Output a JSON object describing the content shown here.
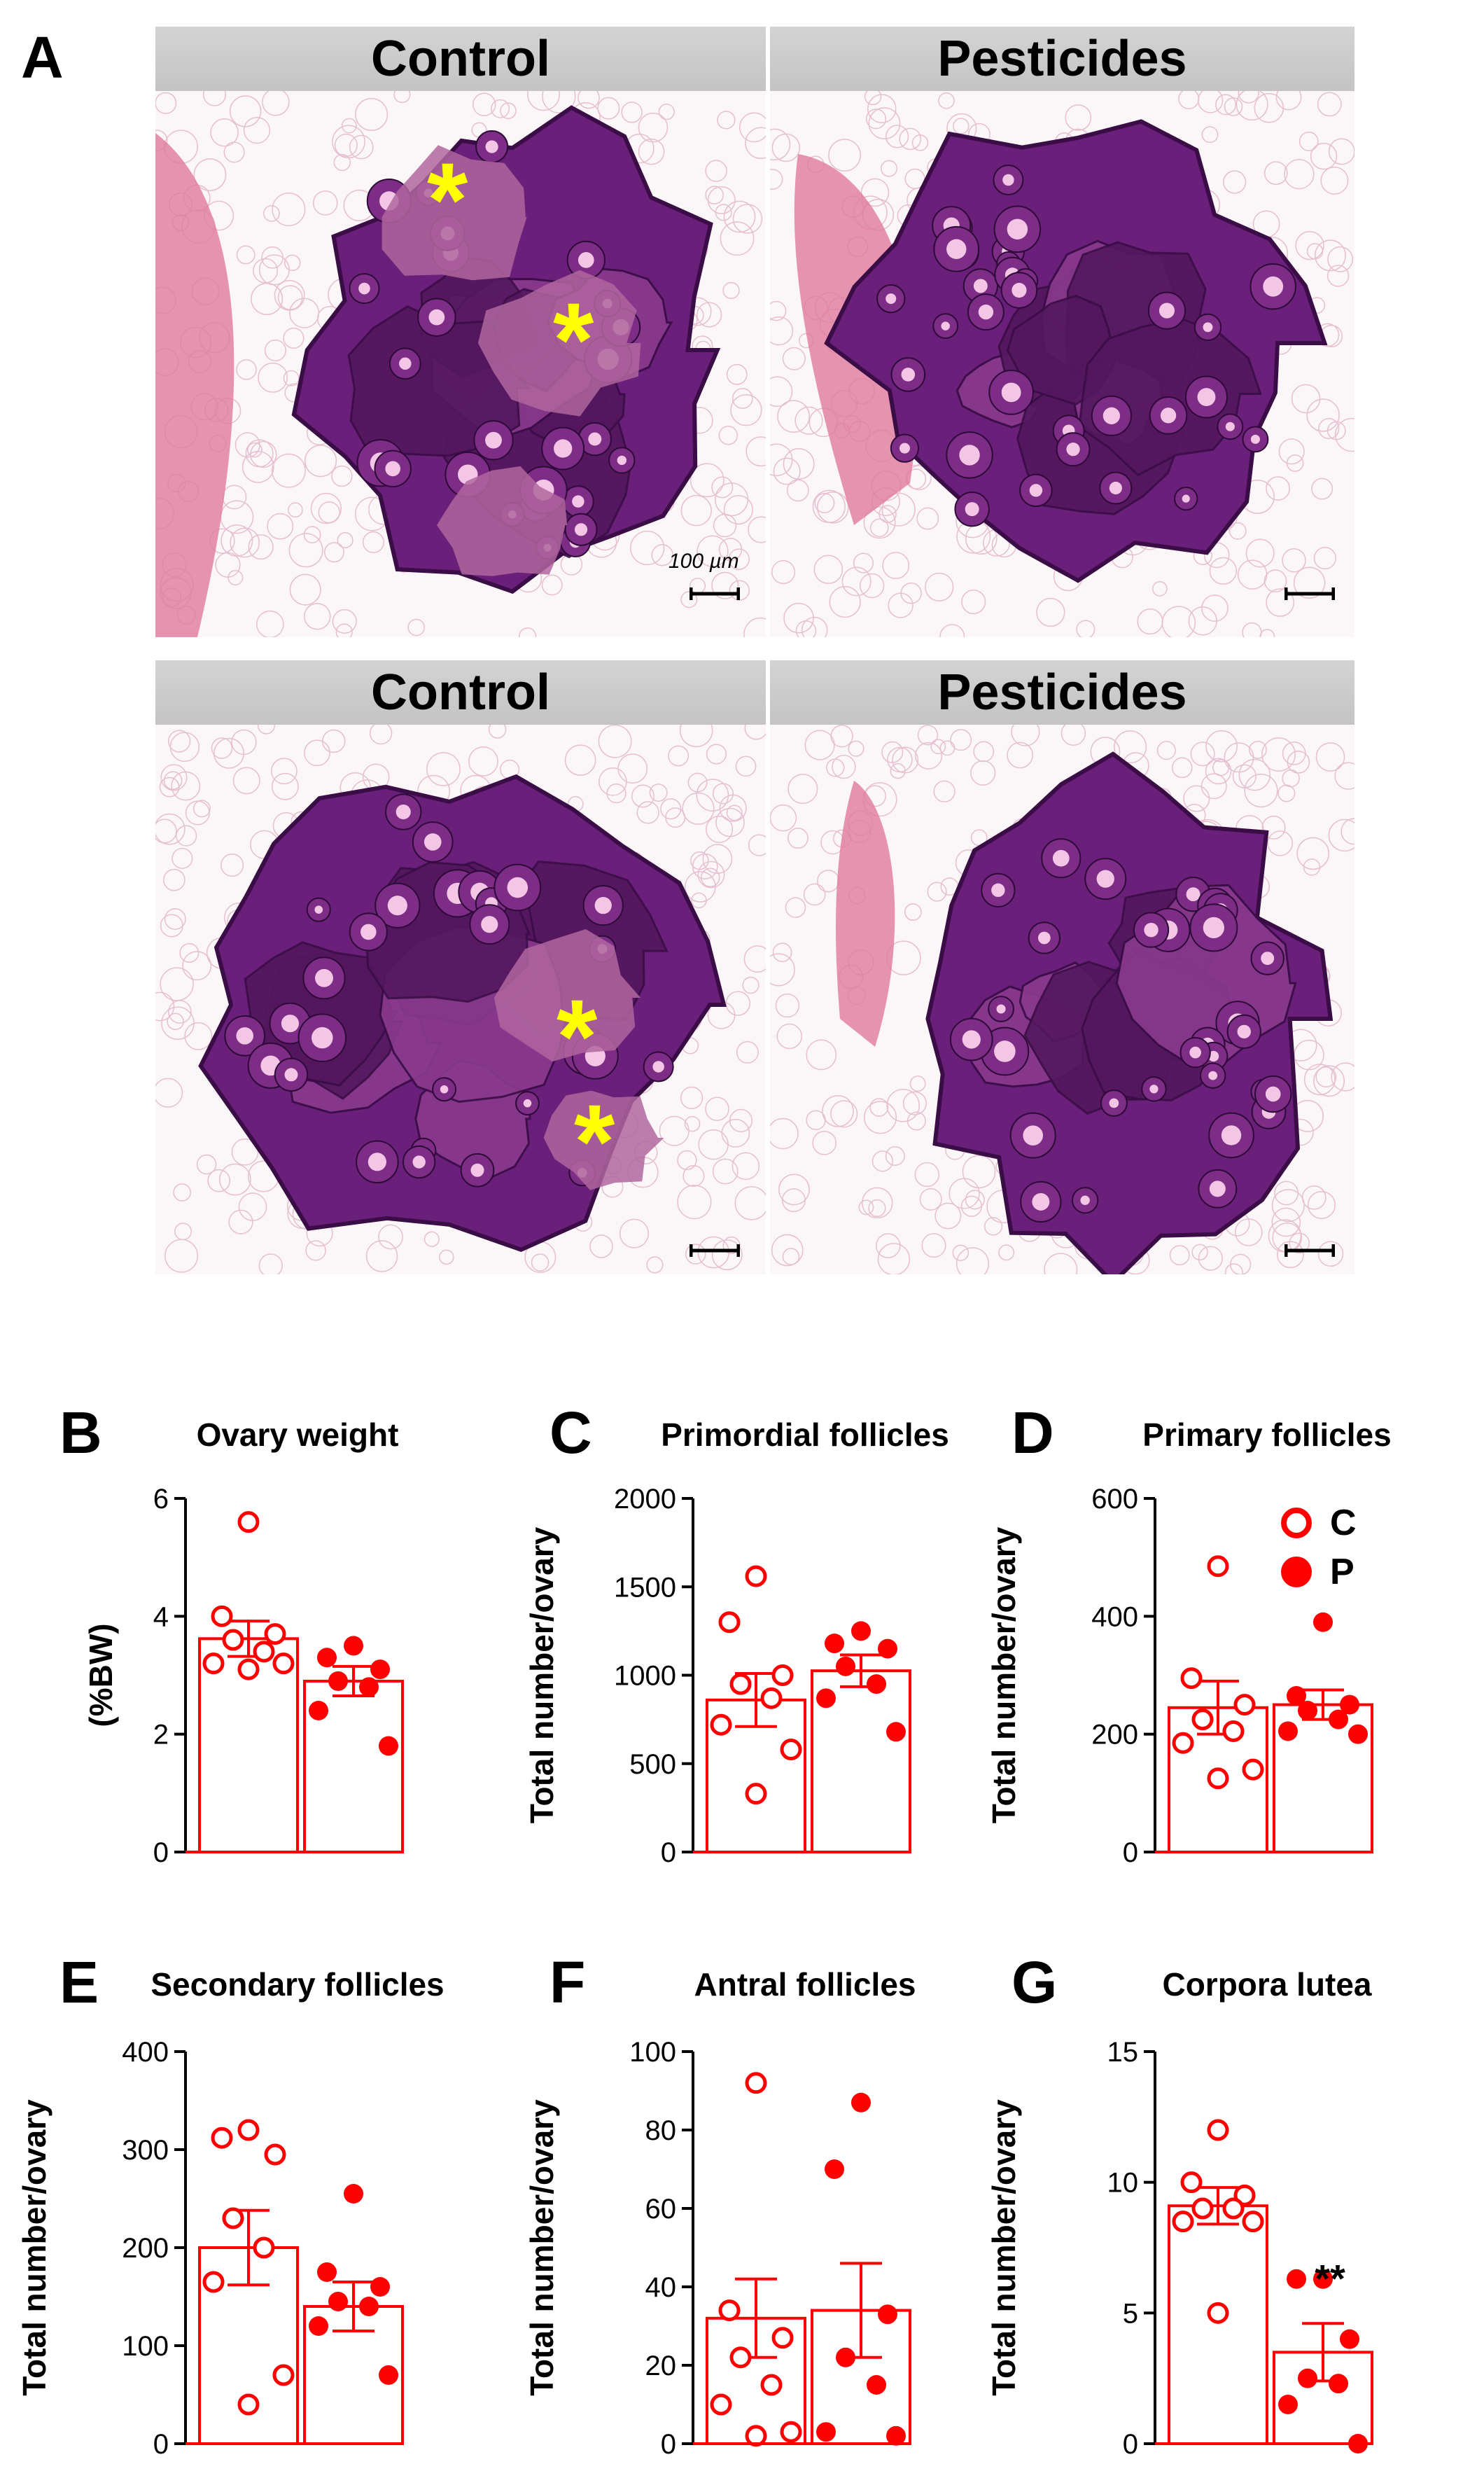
{
  "figure": {
    "panel_a_label": "A",
    "histology": {
      "headers": [
        "Control",
        "Pesticides",
        "Control",
        "Pesticides"
      ],
      "scale_bar_label": "100 µm",
      "marker_glyph": "*"
    },
    "legend": [
      {
        "label": "C",
        "style": "open-circle"
      },
      {
        "label": "P",
        "style": "filled-circle"
      }
    ],
    "colors": {
      "accent": "#ff0000",
      "tissue": "#6a1f7a",
      "stroma": "#e07a9c",
      "marker": "#ffff00",
      "header": "#cccccc"
    }
  },
  "chart_data": [
    {
      "panel": "B",
      "type": "bar",
      "title": "Ovary weight",
      "ylabel": "(%BW)",
      "categories": [
        "C",
        "P"
      ],
      "ylim": [
        0,
        6
      ],
      "yticks": [
        0,
        2,
        4,
        6
      ],
      "means": [
        3.62,
        2.9
      ],
      "sem": [
        0.3,
        0.25
      ],
      "points": [
        [
          5.6,
          4.0,
          3.7,
          3.6,
          3.4,
          3.2,
          3.2,
          3.1
        ],
        [
          3.5,
          3.3,
          3.1,
          2.9,
          2.8,
          2.4,
          1.8
        ]
      ],
      "annotation": ""
    },
    {
      "panel": "C",
      "type": "bar",
      "title": "Primordial follicles",
      "ylabel": "Total number/ovary",
      "categories": [
        "C",
        "P"
      ],
      "ylim": [
        0,
        2000
      ],
      "yticks": [
        0,
        500,
        1000,
        1500,
        2000
      ],
      "means": [
        860,
        1025
      ],
      "sem": [
        150,
        90
      ],
      "points": [
        [
          1560,
          1300,
          1000,
          950,
          870,
          720,
          580,
          330
        ],
        [
          1250,
          1180,
          1150,
          1050,
          950,
          870,
          680
        ]
      ],
      "annotation": ""
    },
    {
      "panel": "D",
      "type": "bar",
      "title": "Primary follicles",
      "ylabel": "Total number/ovary",
      "categories": [
        "C",
        "P"
      ],
      "ylim": [
        0,
        600
      ],
      "yticks": [
        0,
        200,
        400,
        600
      ],
      "means": [
        245,
        250
      ],
      "sem": [
        45,
        25
      ],
      "points": [
        [
          485,
          295,
          250,
          225,
          205,
          185,
          140,
          125
        ],
        [
          390,
          265,
          250,
          240,
          225,
          205,
          200
        ]
      ],
      "annotation": ""
    },
    {
      "panel": "E",
      "type": "bar",
      "title": "Secondary follicles",
      "ylabel": "Total number/ovary",
      "categories": [
        "C",
        "P"
      ],
      "ylim": [
        0,
        400
      ],
      "yticks": [
        0,
        100,
        200,
        300,
        400
      ],
      "means": [
        200,
        140
      ],
      "sem": [
        38,
        25
      ],
      "points": [
        [
          320,
          312,
          295,
          230,
          200,
          165,
          70,
          40
        ],
        [
          255,
          175,
          160,
          145,
          140,
          120,
          70
        ]
      ],
      "annotation": ""
    },
    {
      "panel": "F",
      "type": "bar",
      "title": "Antral follicles",
      "ylabel": "Total number/ovary",
      "categories": [
        "C",
        "P"
      ],
      "ylim": [
        0,
        100
      ],
      "yticks": [
        0,
        20,
        40,
        60,
        80,
        100
      ],
      "means": [
        32,
        34
      ],
      "sem": [
        10,
        12
      ],
      "points": [
        [
          92,
          34,
          27,
          22,
          15,
          10,
          3,
          2
        ],
        [
          87,
          70,
          33,
          22,
          15,
          3,
          2
        ]
      ],
      "annotation": ""
    },
    {
      "panel": "G",
      "type": "bar",
      "title": "Corpora lutea",
      "ylabel": "Total number/ovary",
      "categories": [
        "C",
        "P"
      ],
      "ylim": [
        0,
        15
      ],
      "yticks": [
        0,
        5,
        10,
        15
      ],
      "means": [
        9.1,
        3.5
      ],
      "sem": [
        0.7,
        1.1
      ],
      "points": [
        [
          12,
          10,
          9.5,
          9,
          9,
          8.5,
          8.5,
          5
        ],
        [
          6.3,
          6.3,
          4,
          2.5,
          2.3,
          1.5,
          0
        ]
      ],
      "annotation": "**"
    }
  ]
}
